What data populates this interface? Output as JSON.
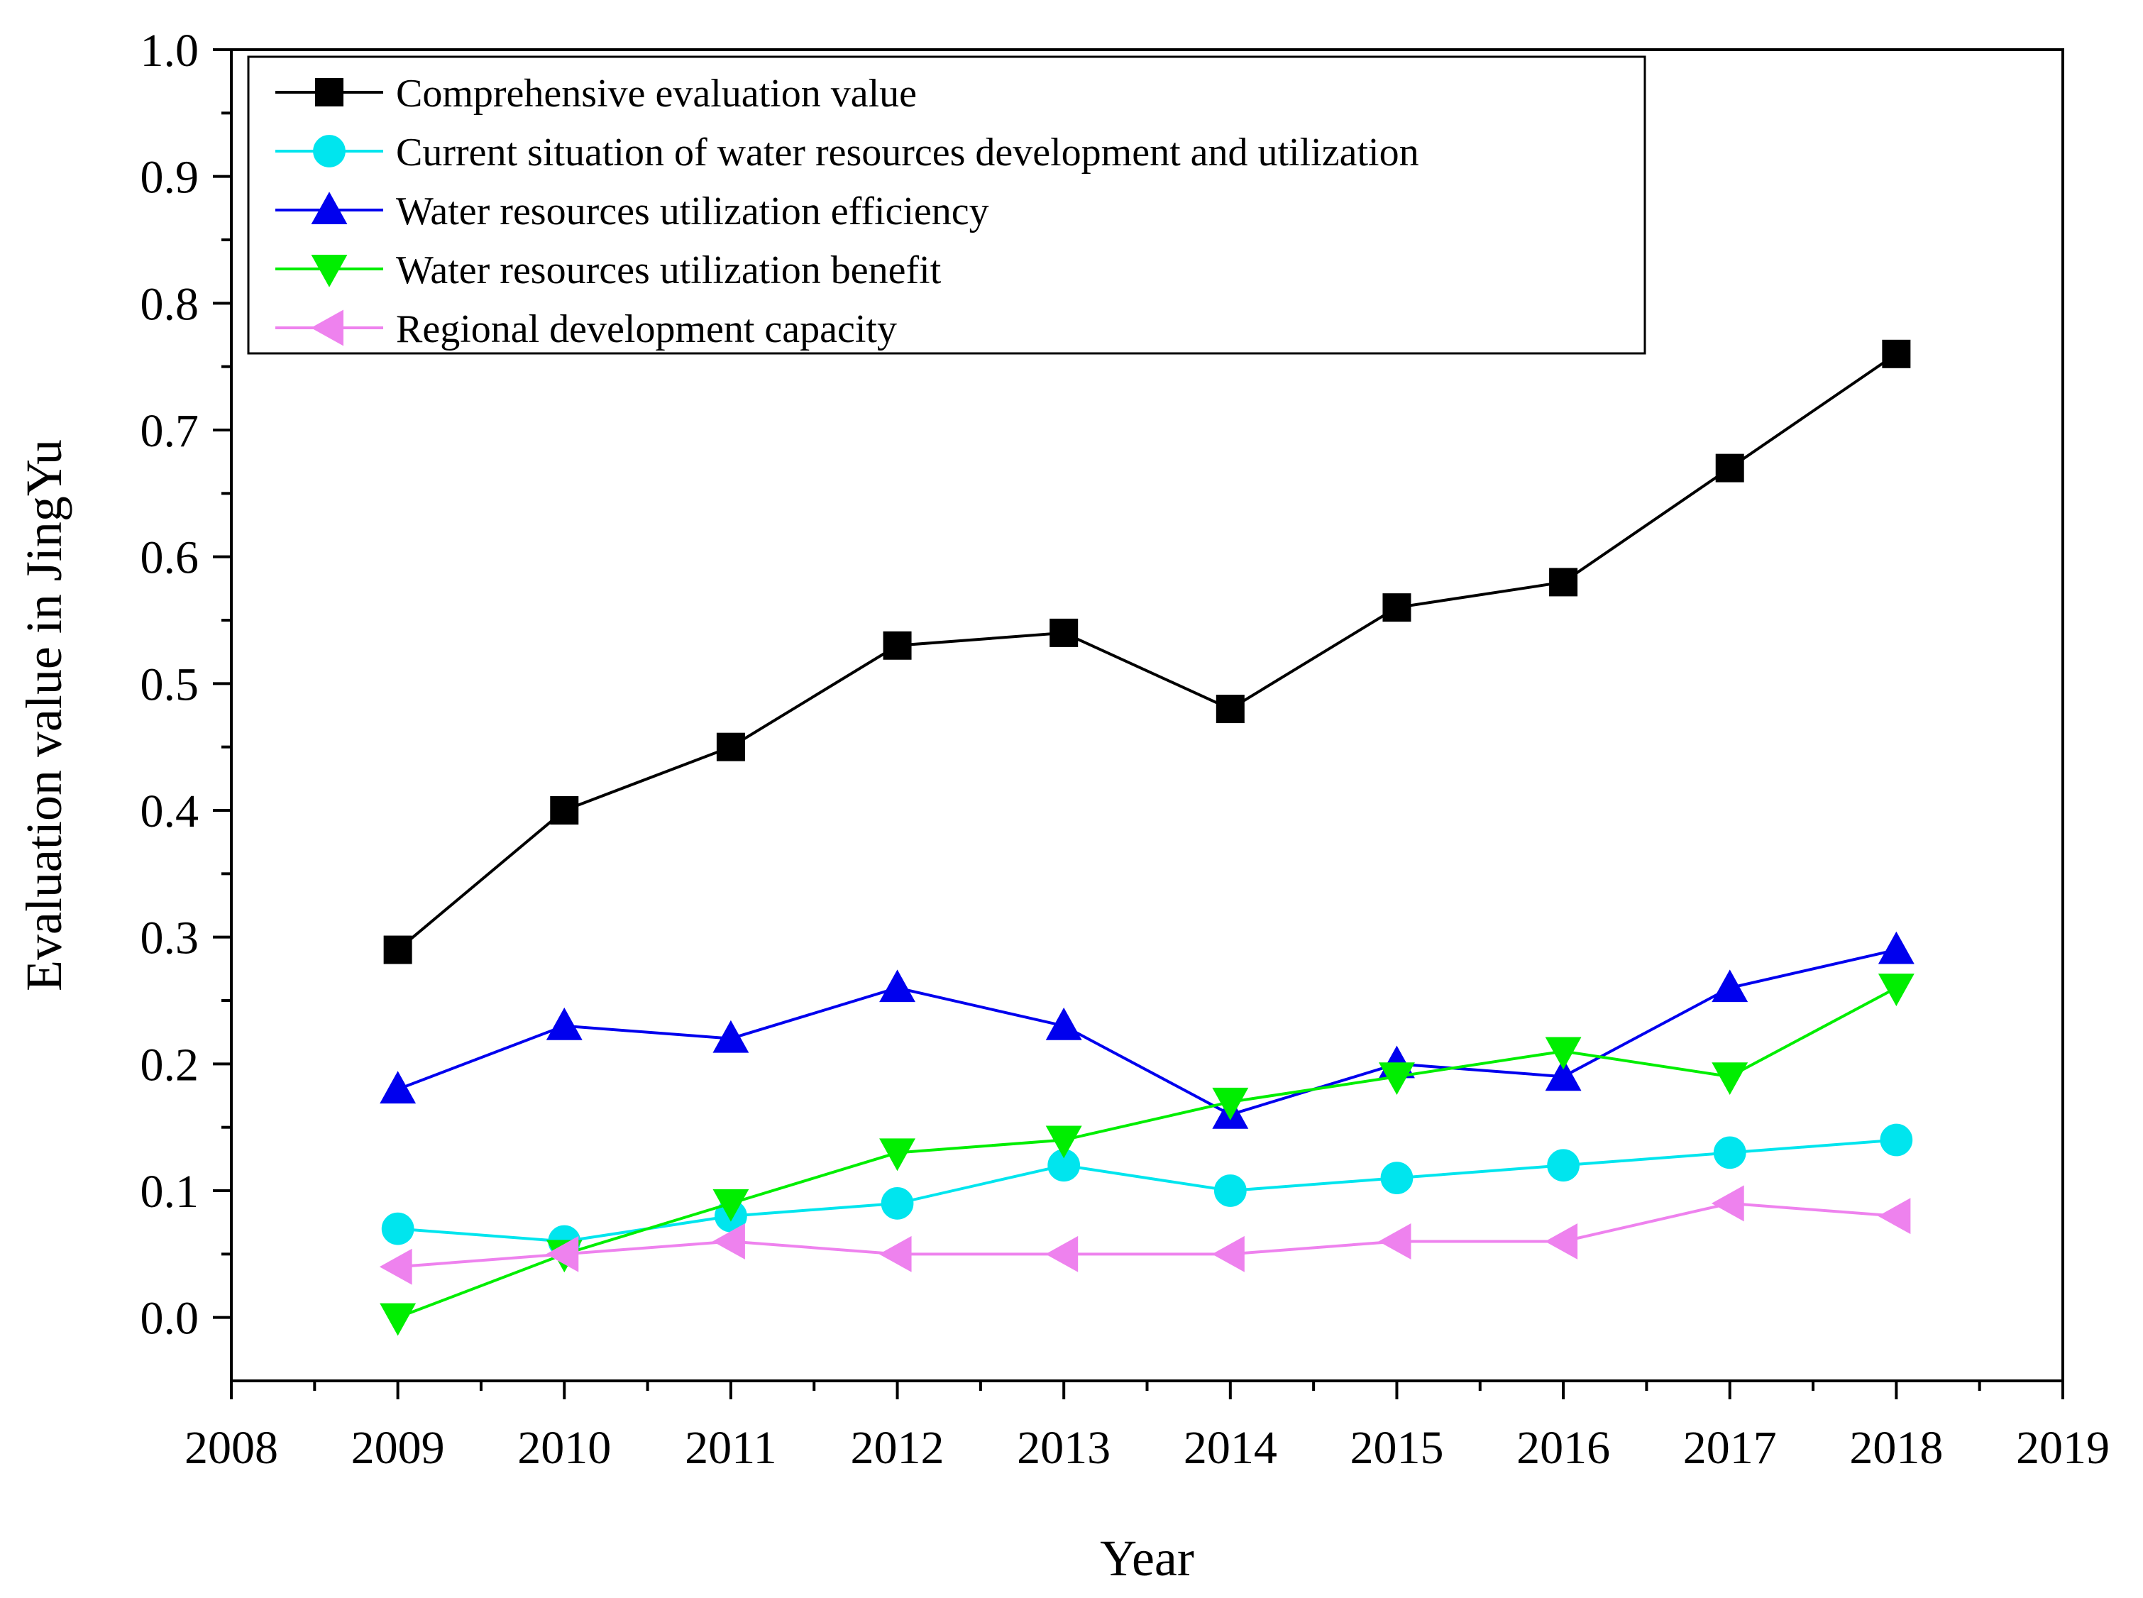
{
  "chart_data": {
    "type": "line",
    "title": "",
    "xlabel": "Year",
    "ylabel": "Evaluation value in JingYu",
    "xlim": [
      2008,
      2019
    ],
    "ylim": [
      -0.05,
      1.0
    ],
    "x_ticks": [
      "2008",
      "2009",
      "2010",
      "2011",
      "2012",
      "2013",
      "2014",
      "2015",
      "2016",
      "2017",
      "2018",
      "2019"
    ],
    "y_ticks": [
      "0.0",
      "0.1",
      "0.2",
      "0.3",
      "0.4",
      "0.5",
      "0.6",
      "0.7",
      "0.8",
      "0.9",
      "1.0"
    ],
    "grid": false,
    "legend_position": "top-left",
    "x": [
      2009,
      2010,
      2011,
      2012,
      2013,
      2014,
      2015,
      2016,
      2017,
      2018
    ],
    "series": [
      {
        "name": "Comprehensive evaluation value",
        "color": "#000000",
        "marker": "square",
        "values": [
          0.29,
          0.4,
          0.45,
          0.53,
          0.54,
          0.48,
          0.56,
          0.58,
          0.67,
          0.76
        ]
      },
      {
        "name": "Current situation of water resources development and utilization",
        "color": "#00e5ee",
        "marker": "circle",
        "values": [
          0.07,
          0.06,
          0.08,
          0.09,
          0.12,
          0.1,
          0.11,
          0.12,
          0.13,
          0.14
        ]
      },
      {
        "name": "Water resources utilization efficiency",
        "color": "#0000ee",
        "marker": "triangle-up",
        "values": [
          0.18,
          0.23,
          0.22,
          0.26,
          0.23,
          0.16,
          0.2,
          0.19,
          0.26,
          0.29
        ]
      },
      {
        "name": "Water resources utilization benefit",
        "color": "#00ee00",
        "marker": "triangle-down",
        "values": [
          0.0,
          0.05,
          0.09,
          0.13,
          0.14,
          0.17,
          0.19,
          0.21,
          0.19,
          0.26
        ]
      },
      {
        "name": "Regional development capacity",
        "color": "#ee82ee",
        "marker": "triangle-left",
        "values": [
          0.04,
          0.05,
          0.06,
          0.05,
          0.05,
          0.05,
          0.06,
          0.06,
          0.09,
          0.08
        ]
      }
    ]
  }
}
